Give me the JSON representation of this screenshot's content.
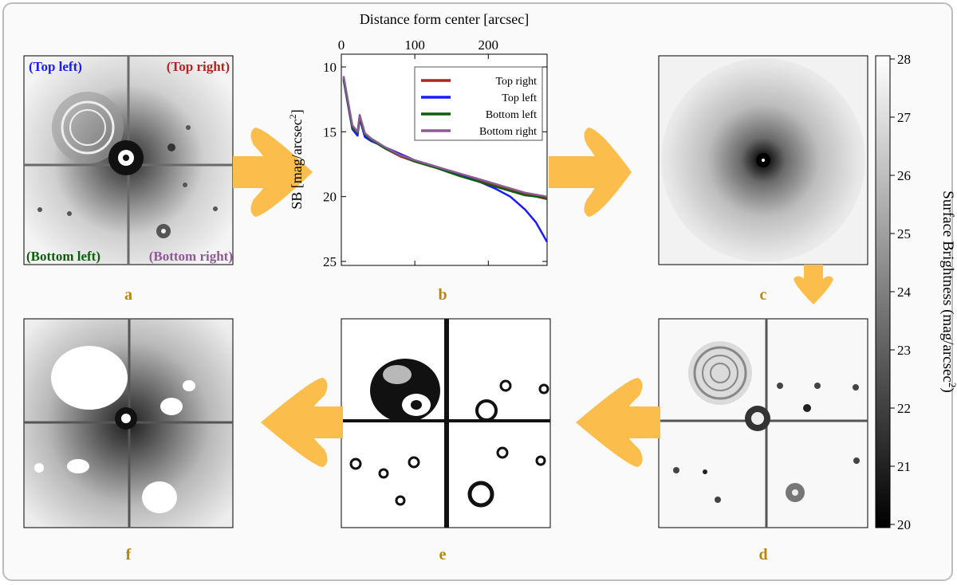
{
  "panel_labels": {
    "a": "a",
    "b": "b",
    "c": "c",
    "d": "d",
    "e": "e",
    "f": "f"
  },
  "quadrant_labels": {
    "top_left": "(Top left)",
    "top_right": "(Top right)",
    "bottom_left": "(Bottom left)",
    "bottom_right": "(Bottom right)"
  },
  "colorbar": {
    "label_main": "Surface Brightness (mag/arcsec",
    "label_sup": "2",
    "label_close": ")",
    "ticks": [
      "20",
      "21",
      "22",
      "23",
      "24",
      "25",
      "26",
      "27",
      "28"
    ],
    "min": 20,
    "max": 28
  },
  "colors": {
    "arrow": "#fbbd4c",
    "label": "#b8860b",
    "top_right": "#b22222",
    "top_left": "#1a1aff",
    "bottom_left": "#0b5e0b",
    "bottom_right": "#8e5a94"
  },
  "chart_data": {
    "type": "line",
    "title": "",
    "xlabel": "Distance form center [arcsec]",
    "ylabel_main": "SB [mag/arcsec",
    "ylabel_sup": "2",
    "ylabel_close": "]",
    "x_ticks": [
      "0",
      "100",
      "200"
    ],
    "y_ticks": [
      "10",
      "15",
      "20",
      "25"
    ],
    "xlim": [
      0,
      280
    ],
    "ylim": [
      10,
      25
    ],
    "y_inverted": true,
    "legend_position": "top-right",
    "series": [
      {
        "name": "Top right",
        "color": "#b22222",
        "x": [
          3,
          8,
          15,
          22,
          25,
          28,
          32,
          40,
          60,
          80,
          100,
          130,
          160,
          190,
          220,
          250,
          280
        ],
        "values": [
          10.8,
          12.4,
          14.6,
          15.2,
          13.8,
          14.4,
          15.3,
          15.6,
          16.3,
          16.9,
          17.3,
          17.8,
          18.3,
          18.8,
          19.3,
          19.8,
          20.2
        ]
      },
      {
        "name": "Top left",
        "color": "#1a1aff",
        "x": [
          3,
          8,
          15,
          22,
          25,
          28,
          32,
          40,
          60,
          80,
          100,
          130,
          160,
          190,
          210,
          230,
          250,
          265,
          280
        ],
        "values": [
          11.0,
          12.6,
          14.8,
          15.3,
          14.0,
          14.6,
          15.4,
          15.7,
          16.2,
          16.7,
          17.2,
          17.7,
          18.3,
          18.9,
          19.4,
          20.0,
          21.0,
          22.0,
          23.5
        ]
      },
      {
        "name": "Bottom left",
        "color": "#0b5e0b",
        "x": [
          3,
          8,
          15,
          22,
          25,
          28,
          32,
          40,
          60,
          80,
          100,
          130,
          160,
          190,
          220,
          250,
          280
        ],
        "values": [
          10.9,
          12.5,
          14.7,
          15.1,
          13.9,
          14.5,
          15.2,
          15.6,
          16.3,
          16.8,
          17.3,
          17.8,
          18.4,
          18.9,
          19.4,
          19.9,
          20.1
        ]
      },
      {
        "name": "Bottom right",
        "color": "#8e5a94",
        "x": [
          3,
          8,
          15,
          22,
          25,
          28,
          32,
          40,
          60,
          80,
          100,
          130,
          160,
          190,
          220,
          250,
          280
        ],
        "values": [
          10.7,
          12.3,
          14.5,
          15.0,
          13.7,
          14.3,
          15.1,
          15.5,
          16.2,
          16.8,
          17.2,
          17.7,
          18.2,
          18.7,
          19.2,
          19.7,
          20.0
        ]
      }
    ]
  }
}
